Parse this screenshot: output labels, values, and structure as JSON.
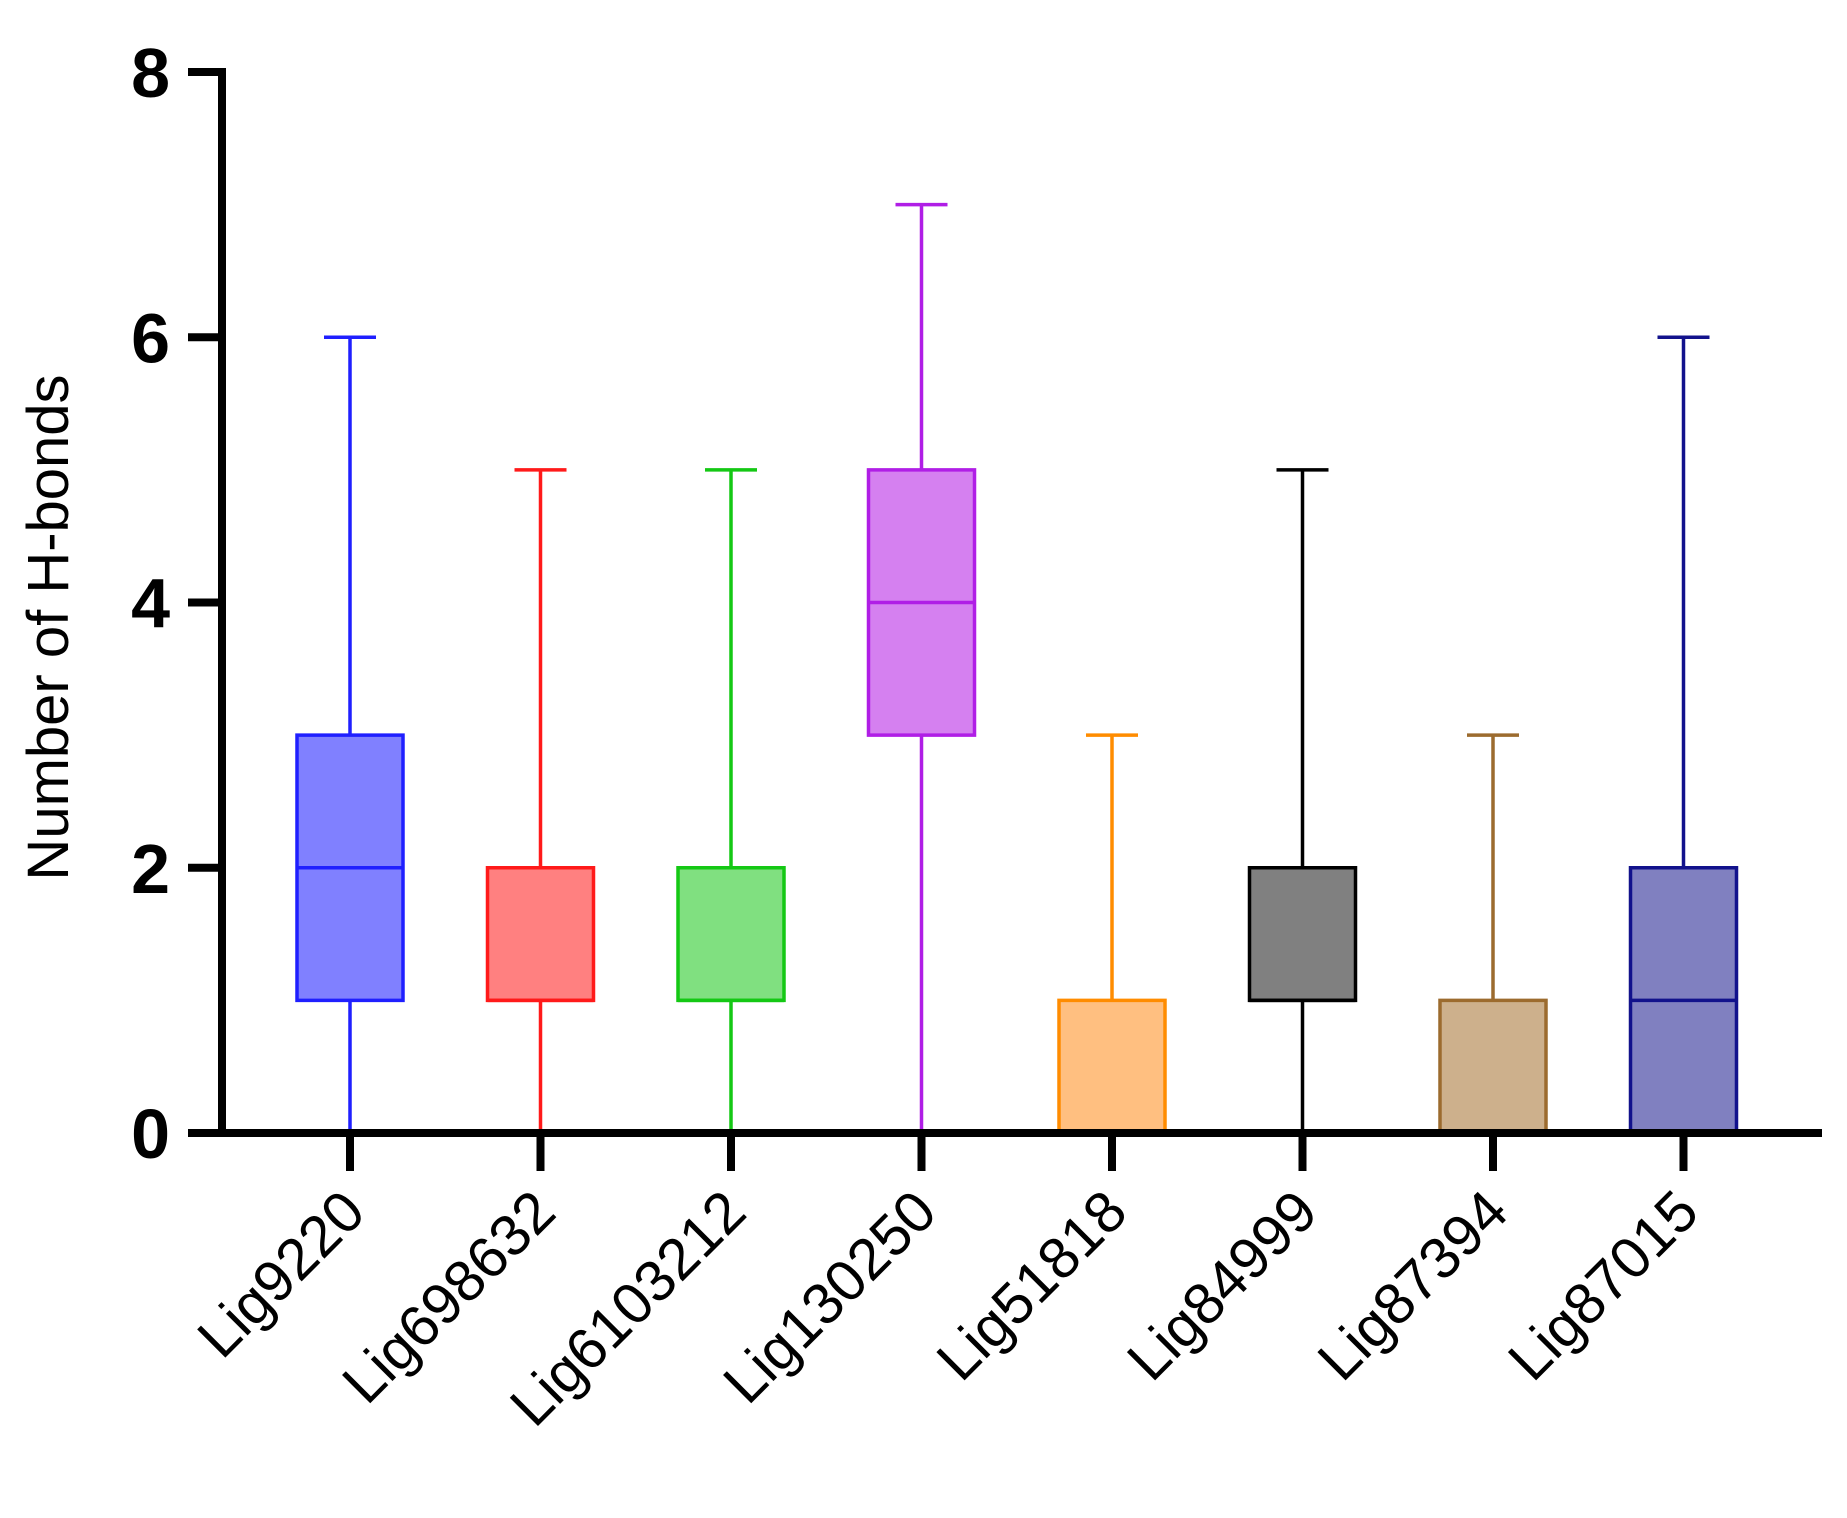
{
  "chart_data": {
    "type": "boxplot",
    "title": "",
    "xlabel": "",
    "ylabel": "Number of H-bonds",
    "ylim": [
      0,
      8
    ],
    "yticks": [
      0,
      2,
      4,
      6,
      8
    ],
    "ytick_labels": [
      "0",
      "2",
      "4",
      "6",
      "8"
    ],
    "grid": false,
    "series": [
      {
        "name": "Lig9220",
        "min": 0,
        "q1": 1,
        "median": 2,
        "q3": 3,
        "max": 6,
        "stroke": "#1f1fff",
        "fill": "#8080ff"
      },
      {
        "name": "Lig698632",
        "min": 0,
        "q1": 1,
        "median": 1,
        "q3": 2,
        "max": 5,
        "stroke": "#ff1a1a",
        "fill": "#ff8080"
      },
      {
        "name": "Lig6103212",
        "min": 0,
        "q1": 1,
        "median": 1,
        "q3": 2,
        "max": 5,
        "stroke": "#14c814",
        "fill": "#80e080"
      },
      {
        "name": "Lig130250",
        "min": 0,
        "q1": 3,
        "median": 4,
        "q3": 5,
        "max": 7,
        "stroke": "#b01ee6",
        "fill": "#d580f0"
      },
      {
        "name": "Lig51818",
        "min": 0,
        "q1": 0,
        "median": 0,
        "q3": 1,
        "max": 3,
        "stroke": "#ff8c00",
        "fill": "#ffbf80"
      },
      {
        "name": "Lig84999",
        "min": 0,
        "q1": 1,
        "median": 1,
        "q3": 2,
        "max": 5,
        "stroke": "#000000",
        "fill": "#808080"
      },
      {
        "name": "Lig87394",
        "min": 0,
        "q1": 0,
        "median": 0,
        "q3": 1,
        "max": 3,
        "stroke": "#9c6b2e",
        "fill": "#cdb08c"
      },
      {
        "name": "Lig87015",
        "min": 0,
        "q1": 0,
        "median": 1,
        "q3": 2,
        "max": 6,
        "stroke": "#12128c",
        "fill": "#8080c0"
      }
    ]
  }
}
